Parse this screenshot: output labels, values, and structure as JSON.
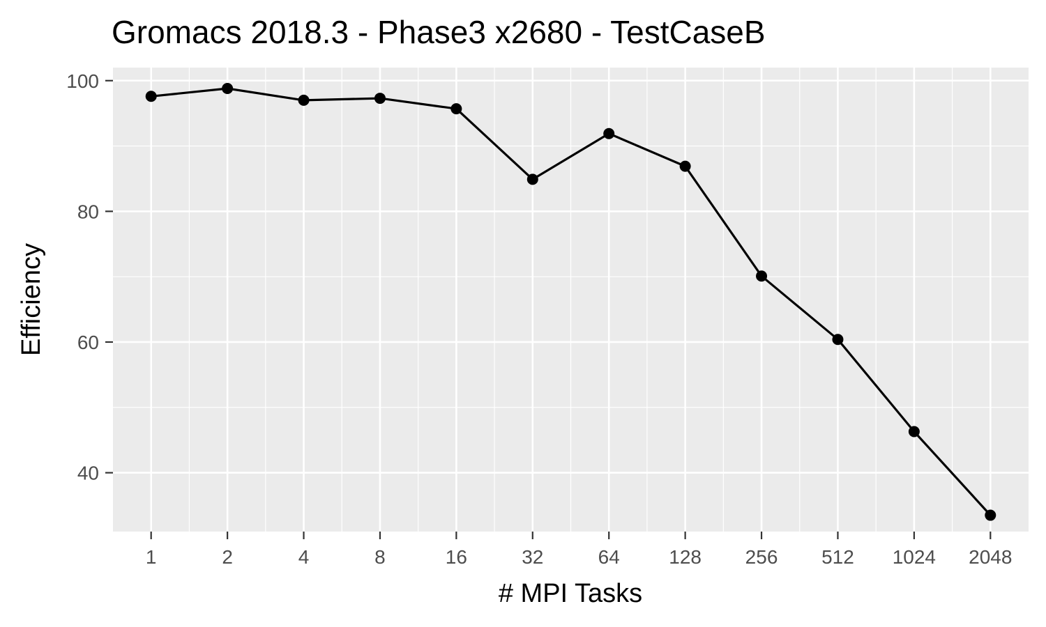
{
  "chart_data": {
    "type": "line",
    "title": "Gromacs 2018.3 - Phase3 x2680 - TestCaseB",
    "xlabel": "# MPI Tasks",
    "ylabel": "Efficiency",
    "x_scale": "log2",
    "categories": [
      "1",
      "2",
      "4",
      "8",
      "16",
      "32",
      "64",
      "128",
      "256",
      "512",
      "1024",
      "2048"
    ],
    "x": [
      1,
      2,
      4,
      8,
      16,
      32,
      64,
      128,
      256,
      512,
      1024,
      2048
    ],
    "y": [
      97.6,
      98.8,
      97.0,
      97.3,
      95.7,
      84.9,
      91.9,
      86.9,
      70.1,
      60.4,
      46.3,
      33.5
    ],
    "ylim": [
      31,
      102
    ],
    "y_ticks": [
      40,
      60,
      80,
      100
    ],
    "y_tick_labels": [
      "40",
      "60",
      "80",
      "100"
    ],
    "grid": true,
    "colors": {
      "panel_background": "#ebebeb",
      "grid": "#ffffff",
      "line": "#000000",
      "point": "#000000"
    }
  }
}
